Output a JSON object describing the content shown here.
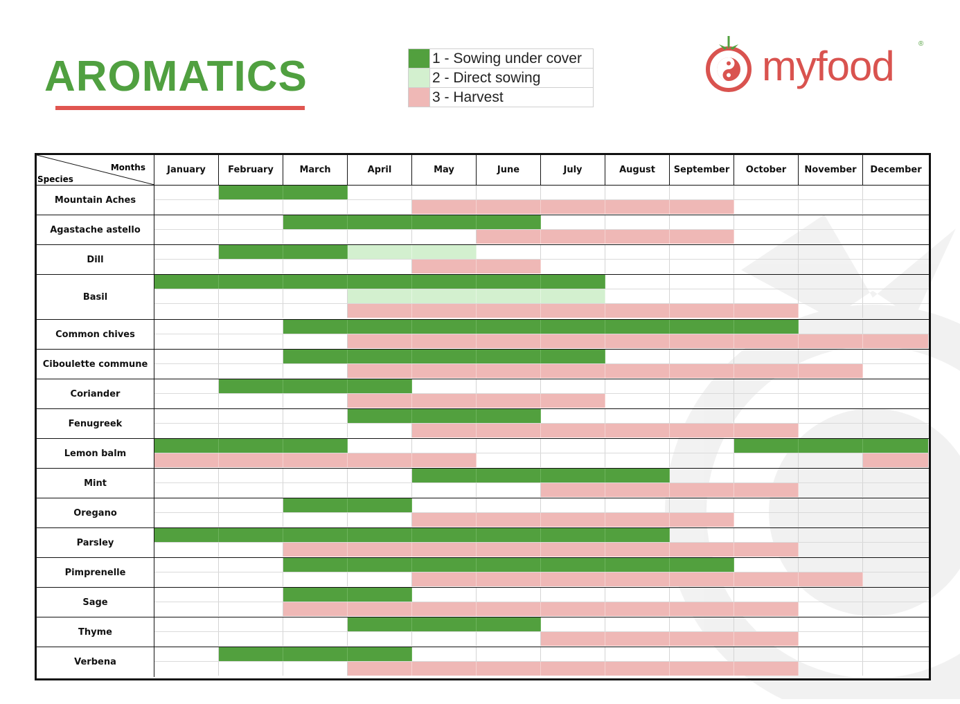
{
  "title": "AROMATICS",
  "legend": [
    {
      "label": "1 - Sowing under cover",
      "color": "#52a03e"
    },
    {
      "label": "2 - Direct sowing",
      "color": "#d3f0cf"
    },
    {
      "label": "3 - Harvest",
      "color": "#efb8b6"
    }
  ],
  "brand": {
    "name": "myfood",
    "reg": "®",
    "primary_color": "#d9534f"
  },
  "table": {
    "header_months": "Months",
    "header_species": "Species",
    "months": [
      "January",
      "February",
      "March",
      "April",
      "May",
      "June",
      "July",
      "August",
      "September",
      "October",
      "November",
      "December"
    ]
  },
  "species": [
    {
      "name": "Mountain Aches",
      "rows": [
        {
          "type": 1,
          "months": [
            2,
            3
          ]
        },
        {
          "type": 3,
          "months": [
            5,
            6,
            7,
            8,
            9
          ]
        }
      ]
    },
    {
      "name": "Agastache astello",
      "rows": [
        {
          "type": 1,
          "months": [
            3,
            4,
            5,
            6
          ]
        },
        {
          "type": 3,
          "months": [
            6,
            7,
            8,
            9
          ]
        }
      ]
    },
    {
      "name": "Dill",
      "rows": [
        {
          "type": 1,
          "months": [
            2,
            3
          ],
          "extra": {
            "type": 2,
            "months": [
              4,
              5
            ]
          }
        },
        {
          "type": 3,
          "months": [
            5,
            6
          ]
        }
      ]
    },
    {
      "name": "Basil",
      "rows": [
        {
          "type": 1,
          "months": [
            1,
            2,
            3,
            4,
            5,
            6,
            7
          ]
        },
        {
          "type": 2,
          "months": [
            4,
            5,
            6,
            7
          ]
        },
        {
          "type": 3,
          "months": [
            4,
            5,
            6,
            7,
            8,
            9,
            10
          ]
        }
      ]
    },
    {
      "name": "Common chives",
      "rows": [
        {
          "type": 1,
          "months": [
            3,
            4,
            5,
            6,
            7,
            8,
            9,
            10
          ]
        },
        {
          "type": 3,
          "months": [
            4,
            5,
            6,
            7,
            8,
            9,
            10,
            11,
            12
          ]
        }
      ]
    },
    {
      "name": "Ciboulette commune",
      "rows": [
        {
          "type": 1,
          "months": [
            3,
            4,
            5,
            6,
            7
          ]
        },
        {
          "type": 3,
          "months": [
            4,
            5,
            6,
            7,
            8,
            9,
            10,
            11
          ]
        }
      ]
    },
    {
      "name": "Coriander",
      "rows": [
        {
          "type": 1,
          "months": [
            2,
            3,
            4
          ]
        },
        {
          "type": 3,
          "months": [
            4,
            5,
            6,
            7
          ]
        }
      ]
    },
    {
      "name": "Fenugreek",
      "rows": [
        {
          "type": 1,
          "months": [
            4,
            5,
            6
          ]
        },
        {
          "type": 3,
          "months": [
            5,
            6,
            7,
            8,
            9,
            10
          ]
        }
      ]
    },
    {
      "name": "Lemon balm",
      "rows": [
        {
          "type": 1,
          "months": [
            1,
            2,
            3,
            10,
            11,
            12
          ]
        },
        {
          "type": 3,
          "months": [
            1,
            2,
            3,
            4,
            5,
            12
          ]
        }
      ]
    },
    {
      "name": "Mint",
      "rows": [
        {
          "type": 1,
          "months": [
            5,
            6,
            7,
            8
          ]
        },
        {
          "type": 3,
          "months": [
            7,
            8,
            9,
            10
          ]
        }
      ]
    },
    {
      "name": "Oregano",
      "rows": [
        {
          "type": 1,
          "months": [
            3,
            4
          ]
        },
        {
          "type": 3,
          "months": [
            5,
            6,
            7,
            8,
            9
          ]
        }
      ]
    },
    {
      "name": "Parsley",
      "rows": [
        {
          "type": 1,
          "months": [
            1,
            2,
            3,
            4,
            5,
            6,
            7,
            8
          ]
        },
        {
          "type": 3,
          "months": [
            3,
            4,
            5,
            6,
            7,
            8,
            9,
            10
          ]
        }
      ]
    },
    {
      "name": "Pimprenelle",
      "rows": [
        {
          "type": 1,
          "months": [
            3,
            4,
            5,
            6,
            7,
            8,
            9
          ]
        },
        {
          "type": 3,
          "months": [
            5,
            6,
            7,
            8,
            9,
            10,
            11
          ]
        }
      ]
    },
    {
      "name": "Sage",
      "rows": [
        {
          "type": 1,
          "months": [
            3,
            4
          ]
        },
        {
          "type": 3,
          "months": [
            3,
            4,
            5,
            6,
            7,
            8,
            9,
            10
          ]
        }
      ]
    },
    {
      "name": "Thyme",
      "rows": [
        {
          "type": 1,
          "months": [
            4,
            5,
            6
          ]
        },
        {
          "type": 3,
          "months": [
            7,
            8,
            9,
            10
          ]
        }
      ]
    },
    {
      "name": "Verbena",
      "rows": [
        {
          "type": 1,
          "months": [
            2,
            3,
            4
          ]
        },
        {
          "type": 3,
          "months": [
            4,
            5,
            6,
            7,
            8,
            9,
            10
          ]
        }
      ]
    }
  ]
}
